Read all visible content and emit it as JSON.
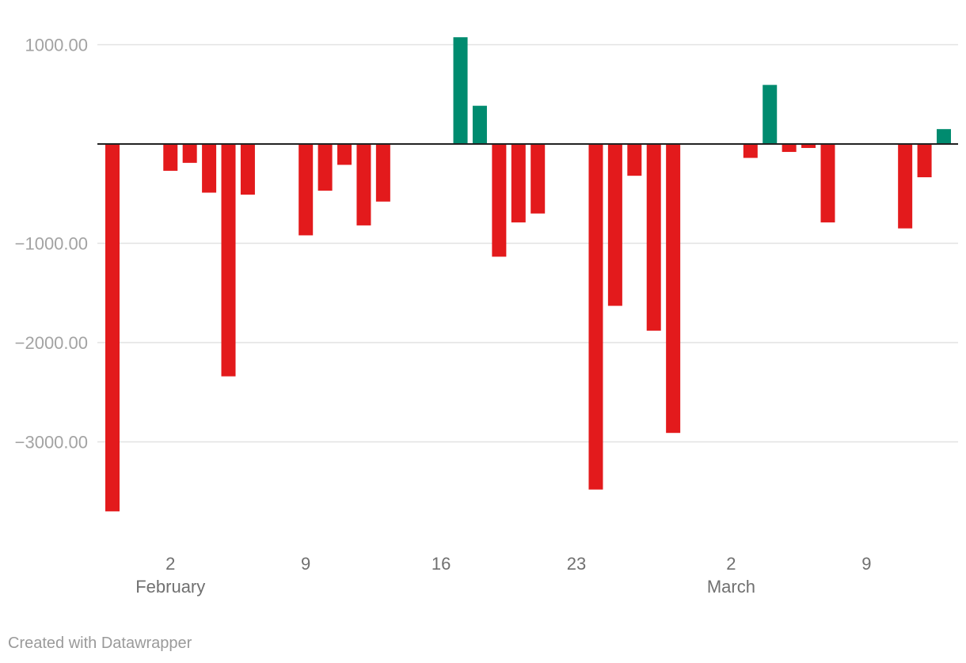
{
  "footer": {
    "credit": "Created with Datawrapper"
  },
  "colors": {
    "negative": "#e31a1c",
    "positive": "#008b6f",
    "grid": "#e2e2e2",
    "zero_line": "#222222"
  },
  "chart_data": {
    "type": "bar",
    "title": "",
    "xlabel": "",
    "ylabel": "",
    "ylim": [
      -3850,
      1150
    ],
    "grid": true,
    "yticks": [
      {
        "value": 1000,
        "label": "1000.00"
      },
      {
        "value": -1000,
        "label": "−1000.00"
      },
      {
        "value": -2000,
        "label": "−2000.00"
      },
      {
        "value": -3000,
        "label": "−3000.00"
      }
    ],
    "xticks": [
      {
        "date": "2024-02-02",
        "label": "2",
        "sublabel": "February"
      },
      {
        "date": "2024-02-09",
        "label": "9",
        "sublabel": ""
      },
      {
        "date": "2024-02-16",
        "label": "16",
        "sublabel": ""
      },
      {
        "date": "2024-02-23",
        "label": "23",
        "sublabel": ""
      },
      {
        "date": "2024-03-02",
        "label": "2",
        "sublabel": "March"
      },
      {
        "date": "2024-03-09",
        "label": "9",
        "sublabel": ""
      }
    ],
    "x_range": [
      "2024-01-30",
      "2024-03-13"
    ],
    "bars": [
      {
        "date": "2024-01-30",
        "value": -3700
      },
      {
        "date": "2024-02-02",
        "value": -270
      },
      {
        "date": "2024-02-03",
        "value": -190
      },
      {
        "date": "2024-02-04",
        "value": -490
      },
      {
        "date": "2024-02-05",
        "value": -2340
      },
      {
        "date": "2024-02-06",
        "value": -510
      },
      {
        "date": "2024-02-09",
        "value": -920
      },
      {
        "date": "2024-02-10",
        "value": -470
      },
      {
        "date": "2024-02-11",
        "value": -210
      },
      {
        "date": "2024-02-12",
        "value": -820
      },
      {
        "date": "2024-02-13",
        "value": -580
      },
      {
        "date": "2024-02-17",
        "value": 1075
      },
      {
        "date": "2024-02-18",
        "value": 385
      },
      {
        "date": "2024-02-19",
        "value": -1135
      },
      {
        "date": "2024-02-20",
        "value": -790
      },
      {
        "date": "2024-02-21",
        "value": -700
      },
      {
        "date": "2024-02-24",
        "value": -3480
      },
      {
        "date": "2024-02-25",
        "value": -1630
      },
      {
        "date": "2024-02-26",
        "value": -320
      },
      {
        "date": "2024-02-27",
        "value": -1880
      },
      {
        "date": "2024-02-28",
        "value": -2910
      },
      {
        "date": "2024-03-03",
        "value": -140
      },
      {
        "date": "2024-03-04",
        "value": 595
      },
      {
        "date": "2024-03-05",
        "value": -80
      },
      {
        "date": "2024-03-06",
        "value": -40
      },
      {
        "date": "2024-03-07",
        "value": -790
      },
      {
        "date": "2024-03-11",
        "value": -850
      },
      {
        "date": "2024-03-12",
        "value": -335
      },
      {
        "date": "2024-03-13",
        "value": 150
      }
    ]
  }
}
